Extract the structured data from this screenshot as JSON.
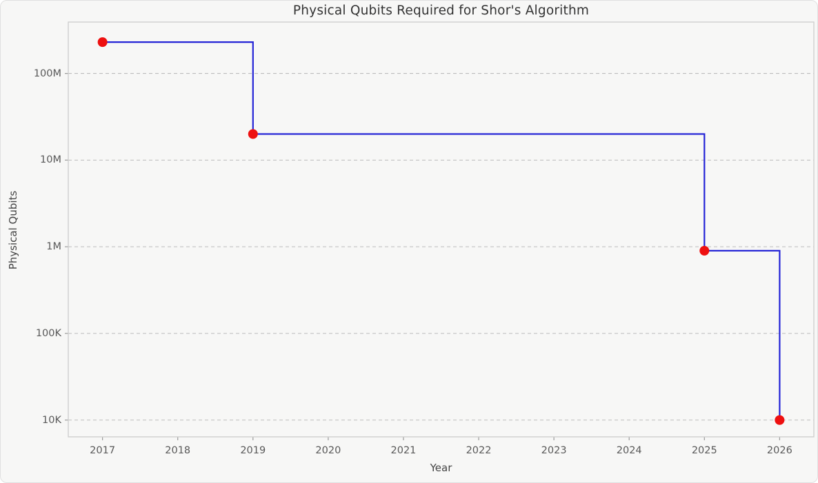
{
  "figure": {
    "title": "Physical Qubits Required for Shor's Algorithm",
    "xlabel": "Year",
    "ylabel": "Physical Qubits"
  },
  "chart_data": {
    "type": "line",
    "subtype": "step-post",
    "title": "Physical Qubits Required for Shor's Algorithm",
    "xlabel": "Year",
    "ylabel": "Physical Qubits",
    "x": [
      2017,
      2019,
      2025,
      2026
    ],
    "y": [
      230000000,
      20000000,
      900000,
      10000
    ],
    "points": [
      {
        "year": 2017,
        "qubits": 230000000,
        "label": "230M"
      },
      {
        "year": 2019,
        "qubits": 20000000,
        "label": "20M"
      },
      {
        "year": 2025,
        "qubits": 900000,
        "label": "900K"
      },
      {
        "year": 2026,
        "qubits": 10000,
        "label": "10K"
      }
    ],
    "x_ticks": [
      2017,
      2018,
      2019,
      2020,
      2021,
      2022,
      2023,
      2024,
      2025,
      2026
    ],
    "y_ticks": [
      {
        "value": 10000,
        "label": "10K"
      },
      {
        "value": 100000,
        "label": "100K"
      },
      {
        "value": 1000000,
        "label": "1M"
      },
      {
        "value": 10000000,
        "label": "10M"
      },
      {
        "value": 100000000,
        "label": "100M"
      }
    ],
    "xlim": [
      2016.545,
      2026.455
    ],
    "ylim": [
      6400,
      392000000
    ],
    "yscale": "log",
    "grid": "horizontal-dashed",
    "legend": null,
    "colors": {
      "line": "#2323d6",
      "marker": "#ee1010",
      "grid": "#bcbcbc",
      "spine": "#cfcfcf",
      "tick": "#9a9a9a",
      "background": "#f7f7f6"
    }
  }
}
